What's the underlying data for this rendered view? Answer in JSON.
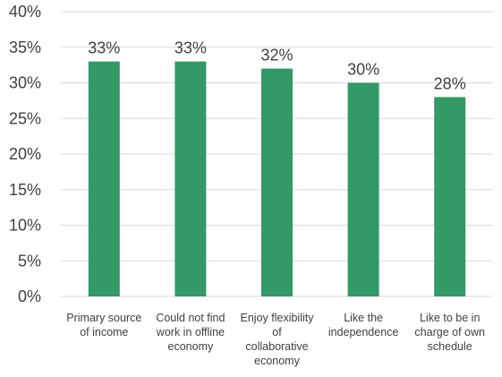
{
  "chart_data": {
    "type": "bar",
    "title": "",
    "xlabel": "",
    "ylabel": "",
    "categories": [
      [
        "Primary source",
        "of income"
      ],
      [
        "Could not find",
        "work in offline",
        "economy"
      ],
      [
        "Enjoy flexibility",
        "of",
        "collaborative",
        "economy"
      ],
      [
        "Like the",
        "independence"
      ],
      [
        "Like to be in",
        "charge of own",
        "schedule"
      ]
    ],
    "values": [
      33,
      33,
      32,
      30,
      28
    ],
    "data_labels": [
      "33%",
      "33%",
      "32%",
      "30%",
      "28%"
    ],
    "ylim": [
      0,
      40
    ],
    "yticks": [
      0,
      5,
      10,
      15,
      20,
      25,
      30,
      35,
      40
    ],
    "ytick_labels": [
      "0%",
      "5%",
      "10%",
      "15%",
      "20%",
      "25%",
      "30%",
      "35%",
      "40%"
    ],
    "grid": true,
    "legend": "none",
    "bar_color": "#339966",
    "grid_color": "#d9d9d9",
    "text_color": "#404040"
  }
}
